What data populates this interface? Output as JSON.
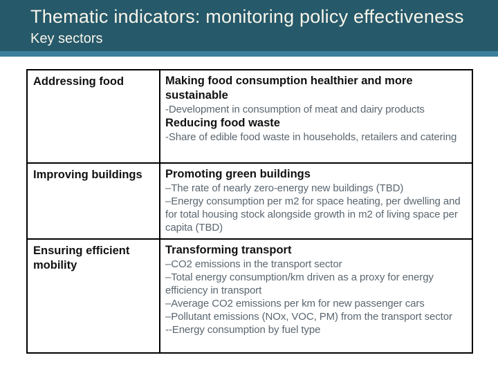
{
  "slide": {
    "title": "Thematic indicators: monitoring policy effectiveness",
    "subtitle": "Key sectors"
  },
  "colors": {
    "page_bg": "#ffffff",
    "header_bg": "#26596a",
    "accent_strip": "#3b809a",
    "header_text": "#f7f5ea",
    "heading_text": "#111111",
    "detail_text": "#5a6670",
    "border": "#000000"
  },
  "table": {
    "rows": [
      {
        "sector": "Addressing food",
        "details": [
          {
            "style": "heading",
            "text": "Making food consumption healthier and more sustainable"
          },
          {
            "style": "item",
            "text": "-Development in consumption of meat and dairy products"
          },
          {
            "style": "heading",
            "text": "Reducing food waste"
          },
          {
            "style": "item",
            "text": "-Share of edible food waste in households, retailers and catering"
          }
        ]
      },
      {
        "sector": "Improving buildings",
        "details": [
          {
            "style": "heading",
            "text": "Promoting green buildings"
          },
          {
            "style": "item",
            "text": "–The rate of nearly zero-energy new buildings (TBD)"
          },
          {
            "style": "item",
            "text": "–Energy consumption per m2 for space heating, per dwelling and for total housing stock alongside growth in m2 of living space per capita (TBD)"
          }
        ]
      },
      {
        "sector": "Ensuring efficient mobility",
        "details": [
          {
            "style": "heading",
            "text": "Transforming transport"
          },
          {
            "style": "item",
            "text": "–CO2 emissions in the transport sector"
          },
          {
            "style": "item",
            "text": "–Total energy consumption/km driven as a proxy for energy efficiency in transport"
          },
          {
            "style": "item",
            "text": "–Average CO2 emissions per km for new passenger cars"
          },
          {
            "style": "item",
            "text": "–Pollutant emissions (NOx, VOC, PM) from the transport sector"
          },
          {
            "style": "item",
            "text": "--Energy consumption by fuel type"
          }
        ]
      }
    ]
  }
}
